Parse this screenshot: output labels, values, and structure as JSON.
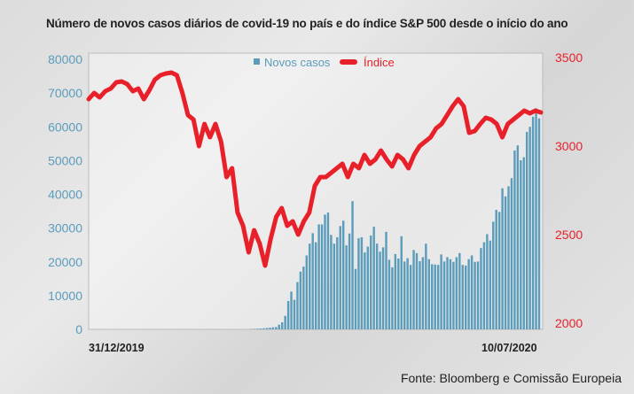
{
  "title": "Número de novos casos diários de covid-19 no país e do índice S&P 500 desde o início do ano",
  "source": "Fonte: Bloomberg e Comissão Europeia",
  "chart_data": {
    "type": "bar+line",
    "x_tick_labels": [
      "31/12/2019",
      "10/07/2020"
    ],
    "x_range": [
      "31/12/2019",
      "10/07/2020"
    ],
    "left_axis": {
      "ticks": [
        0,
        10000,
        20000,
        30000,
        40000,
        50000,
        60000,
        70000,
        80000
      ],
      "range": [
        0,
        80000
      ],
      "color": "#5b9cbb"
    },
    "right_axis": {
      "ticks": [
        2000,
        2500,
        3000,
        3500
      ],
      "range": [
        2000,
        3500
      ],
      "color": "#e8202a"
    },
    "legend_position": "top-center",
    "grid": false,
    "series": [
      {
        "name": "Novos casos",
        "type": "bar",
        "axis": "left",
        "color": "#5b9cbb",
        "values": [
          100,
          150,
          200,
          250,
          300,
          400,
          500,
          600,
          700,
          1400,
          2100,
          4000,
          8400,
          11200,
          8750,
          14000,
          17100,
          18600,
          21900,
          25400,
          28500,
          25800,
          31100,
          31100,
          34000,
          34600,
          28000,
          25400,
          27300,
          30600,
          32200,
          24900,
          28400,
          38000,
          17900,
          27000,
          27300,
          22800,
          24500,
          27800,
          30400,
          25400,
          23000,
          24300,
          28900,
          20600,
          18400,
          22300,
          21000,
          27600,
          20100,
          21100,
          19100,
          23500,
          22600,
          20200,
          21400,
          25400,
          20800,
          19300,
          19200,
          19100,
          22200,
          20100,
          21400,
          20800,
          20000,
          21400,
          22600,
          19100,
          18900,
          20800,
          21900,
          20000,
          20100,
          24100,
          25800,
          28200,
          26300,
          31900,
          35400,
          34800,
          41800,
          39400,
          42400,
          44800,
          53000,
          54500,
          50100,
          51000,
          58500,
          60000,
          63000,
          65500,
          62500
        ]
      },
      {
        "name": "Índice",
        "type": "line",
        "axis": "right",
        "color": "#e8202a",
        "values": [
          3265,
          3300,
          3275,
          3310,
          3325,
          3360,
          3365,
          3350,
          3310,
          3325,
          3265,
          3315,
          3375,
          3400,
          3410,
          3415,
          3400,
          3300,
          3175,
          3150,
          3000,
          3125,
          3050,
          3125,
          3025,
          2825,
          2875,
          2625,
          2550,
          2400,
          2525,
          2450,
          2325,
          2475,
          2600,
          2650,
          2550,
          2575,
          2500,
          2575,
          2625,
          2775,
          2825,
          2825,
          2850,
          2875,
          2900,
          2825,
          2900,
          2875,
          2950,
          2900,
          2925,
          2975,
          2925,
          2885,
          2950,
          2925,
          2875,
          2950,
          3000,
          3025,
          3050,
          3100,
          3125,
          3175,
          3225,
          3265,
          3225,
          3075,
          3085,
          3125,
          3160,
          3150,
          3125,
          3050,
          3125,
          3150,
          3175,
          3200,
          3185,
          3200,
          3190
        ]
      }
    ]
  }
}
